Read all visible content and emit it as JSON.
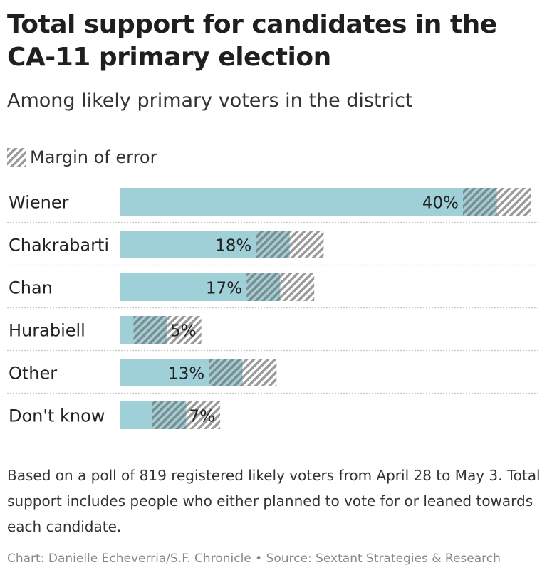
{
  "title": "Total support for candidates in the CA-11 primary election",
  "subtitle": "Among likely primary voters in the district",
  "legend": {
    "margin_label": "Margin of error"
  },
  "colors": {
    "bar": "#9fd0d7",
    "moe_dark": "#7e8b8f",
    "moe_light": "#9a9a9a",
    "gridline": "#c8c8c8"
  },
  "notes": "Based on a poll of 819 registered likely voters from April 28 to May 3. Total support includes people who either planned to vote for or leaned towards each candidate.",
  "credit": "Chart: Danielle Echeverria/S.F. Chronicle • Source: Sextant Strategies & Research",
  "chart_data": {
    "type": "bar",
    "orientation": "horizontal",
    "categories": [
      "Wiener",
      "Chakrabarti",
      "Chan",
      "Hurabiell",
      "Other",
      "Don't know"
    ],
    "values": [
      40,
      18,
      17,
      5,
      13,
      7
    ],
    "value_labels": [
      "40%",
      "18%",
      "17%",
      "5%",
      "13%",
      "7%"
    ],
    "margin_of_error": 3.6,
    "xlim": [
      0,
      44.5
    ],
    "grid": false,
    "legend": "top-left"
  }
}
